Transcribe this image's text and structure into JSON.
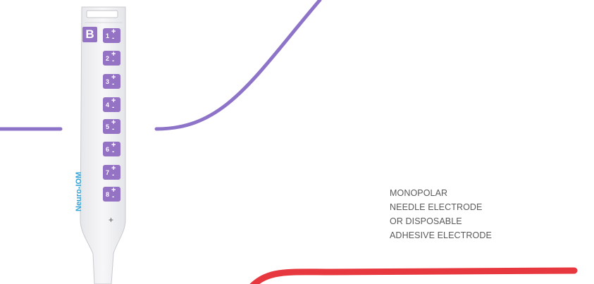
{
  "probe": {
    "bank_letter": "B",
    "brand": "Neuro-IOM",
    "ground_symbol": "+",
    "channels": [
      {
        "number": "1",
        "plus": "+",
        "minus": "-"
      },
      {
        "number": "2",
        "plus": "+",
        "minus": "-"
      },
      {
        "number": "3",
        "plus": "+",
        "minus": "-"
      },
      {
        "number": "4",
        "plus": "+",
        "minus": "-"
      },
      {
        "number": "5",
        "plus": "+",
        "minus": "-"
      },
      {
        "number": "6",
        "plus": "+",
        "minus": "-"
      },
      {
        "number": "7",
        "plus": "+",
        "minus": "-"
      },
      {
        "number": "8",
        "plus": "+",
        "minus": "-"
      }
    ]
  },
  "label": {
    "lines": [
      "MONOPOLAR",
      "NEEDLE ELECTRODE",
      "OR DISPOSABLE",
      "ADHESIVE ELECTRODE"
    ]
  },
  "colors": {
    "probe_accent": "#9573c4",
    "brand_text": "#34a3d6",
    "purple_line": "#8e74c8",
    "red_line": "#e8383f",
    "label_text": "#5a5a5a"
  }
}
